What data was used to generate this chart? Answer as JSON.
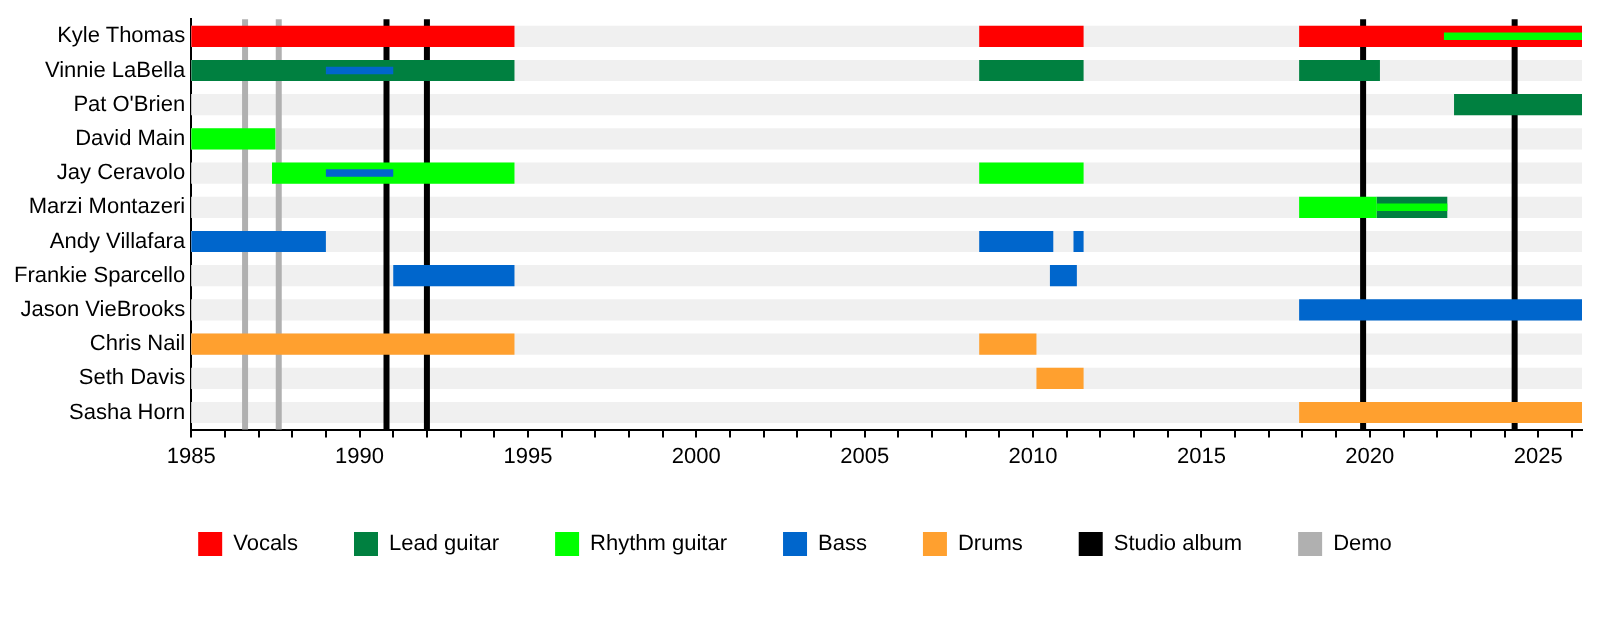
{
  "chart_data": {
    "type": "bar",
    "orientation": "horizontal",
    "categories": [
      "Kyle Thomas",
      "Vinnie LaBella",
      "Pat O'Brien",
      "David Main",
      "Jay Ceravolo",
      "Marzi Montazeri",
      "Andy Villafara",
      "Frankie Sparcello",
      "Jason VieBrooks",
      "Chris Nail",
      "Seth Davis",
      "Sasha Horn"
    ],
    "series": [
      {
        "name": "Vocals",
        "color": "#ff0000",
        "base": [
          1985,
          null,
          null,
          null,
          null,
          null,
          null,
          null,
          null,
          null,
          null,
          null
        ],
        "values": [
          9.6,
          null,
          null,
          null,
          null,
          null,
          null,
          null,
          null,
          null,
          null,
          null
        ]
      },
      {
        "color": "#ff0000",
        "base": [
          2008.4,
          null,
          null,
          null,
          null,
          null,
          null,
          null,
          null,
          null,
          null,
          null
        ],
        "values": [
          3.1,
          null,
          null,
          null,
          null,
          null,
          null,
          null,
          null,
          null,
          null,
          null
        ]
      },
      {
        "color": "#ff0000",
        "base": [
          2017.9,
          null,
          null,
          null,
          null,
          null,
          null,
          null,
          null,
          null,
          null,
          null
        ],
        "values": [
          8.4,
          null,
          null,
          null,
          null,
          null,
          null,
          null,
          null,
          null,
          null,
          null
        ]
      },
      {
        "name": "Lead guitar",
        "color": "#008040",
        "base": [
          null,
          1985,
          null,
          null,
          null,
          null,
          null,
          null,
          null,
          null,
          null,
          null
        ],
        "values": [
          null,
          9.6,
          null,
          null,
          null,
          null,
          null,
          null,
          null,
          null,
          null,
          null
        ]
      },
      {
        "color": "#008040",
        "base": [
          null,
          2008.4,
          null,
          null,
          null,
          null,
          null,
          null,
          null,
          null,
          null,
          null
        ],
        "values": [
          null,
          3.1,
          null,
          null,
          null,
          null,
          null,
          null,
          null,
          null,
          null,
          null
        ]
      },
      {
        "color": "#008040",
        "base": [
          null,
          2017.9,
          2022.5,
          null,
          null,
          2020.2,
          null,
          null,
          null,
          null,
          null,
          null
        ],
        "values": [
          null,
          2.4,
          3.8,
          null,
          null,
          2.1,
          null,
          null,
          null,
          null,
          null,
          null
        ]
      },
      {
        "name": "Rhythm guitar",
        "color": "#00ff00",
        "base": [
          null,
          null,
          null,
          1985,
          1987.4,
          2017.9,
          null,
          null,
          null,
          null,
          null,
          null
        ],
        "values": [
          null,
          null,
          null,
          2.5,
          7.2,
          2.3,
          null,
          null,
          null,
          null,
          null,
          null
        ]
      },
      {
        "color": "#00ff00",
        "base": [
          null,
          null,
          null,
          null,
          2008.4,
          null,
          null,
          null,
          null,
          null,
          null,
          null
        ],
        "values": [
          null,
          null,
          null,
          null,
          3.1,
          null,
          null,
          null,
          null,
          null,
          null,
          null
        ]
      },
      {
        "name": "Bass",
        "color": "#0066cc",
        "base": [
          null,
          null,
          null,
          null,
          null,
          null,
          1985,
          1991.0,
          2017.9,
          null,
          null,
          null
        ],
        "values": [
          null,
          null,
          null,
          null,
          null,
          null,
          4.0,
          3.6,
          8.4,
          null,
          null,
          null
        ]
      },
      {
        "color": "#0066cc",
        "base": [
          null,
          null,
          null,
          null,
          null,
          null,
          2008.4,
          2010.5,
          null,
          null,
          null,
          null
        ],
        "values": [
          null,
          null,
          null,
          null,
          null,
          null,
          2.2,
          0.8,
          null,
          null,
          null,
          null
        ]
      },
      {
        "color": "#0066cc",
        "base": [
          null,
          null,
          null,
          null,
          null,
          null,
          2011.2,
          null,
          null,
          null,
          null,
          null
        ],
        "values": [
          null,
          null,
          null,
          null,
          null,
          null,
          0.3,
          null,
          null,
          null,
          null,
          null
        ]
      },
      {
        "name": "Drums",
        "color": "#ffa02f",
        "base": [
          null,
          null,
          null,
          null,
          null,
          null,
          null,
          null,
          null,
          1985,
          2010.1,
          2017.9
        ],
        "values": [
          null,
          null,
          null,
          null,
          null,
          null,
          null,
          null,
          null,
          9.6,
          1.4,
          8.4
        ]
      },
      {
        "color": "#ffa02f",
        "base": [
          null,
          null,
          null,
          null,
          null,
          null,
          null,
          null,
          null,
          2008.4,
          null,
          null
        ],
        "values": [
          null,
          null,
          null,
          null,
          null,
          null,
          null,
          null,
          null,
          1.7,
          null,
          null
        ]
      },
      {
        "color": "#0066cc",
        "base": [
          null,
          1989.0,
          null,
          null,
          1989.0,
          null,
          null,
          null,
          null,
          null,
          null,
          null
        ],
        "values": [
          null,
          2.0,
          null,
          null,
          2.0,
          null,
          null,
          null,
          null,
          null,
          null,
          null
        ]
      },
      {
        "color": "#00ff00",
        "base": [
          2022.2,
          null,
          null,
          null,
          null,
          2020.2,
          null,
          null,
          null,
          null,
          null,
          null
        ],
        "values": [
          4.1,
          null,
          null,
          null,
          null,
          2.1,
          null,
          null,
          null,
          null,
          null,
          null
        ]
      }
    ],
    "ref_lines": [
      {
        "axis": "x",
        "value": 1990.8,
        "label": "Studio album",
        "color": "#000000"
      },
      {
        "axis": "x",
        "value": 1992.0,
        "color": "#000000"
      },
      {
        "axis": "x",
        "value": 2019.8,
        "color": "#000000"
      },
      {
        "axis": "x",
        "value": 2024.3,
        "color": "#000000"
      },
      {
        "axis": "x",
        "value": 1986.6,
        "label": "Demo",
        "color": "#b0b0b0"
      },
      {
        "axis": "x",
        "value": 1987.6,
        "color": "#b0b0b0"
      }
    ],
    "xlim": [
      1985,
      2026.3
    ],
    "xticks": [
      1985,
      {
        "value": 1986,
        "label": null
      },
      {
        "value": 1987,
        "label": null
      },
      {
        "value": 1988,
        "label": null
      },
      {
        "value": 1989,
        "label": null
      },
      1990,
      {
        "value": 1991,
        "label": null
      },
      {
        "value": 1992,
        "label": null
      },
      {
        "value": 1993,
        "label": null
      },
      {
        "value": 1994,
        "label": null
      },
      1995,
      {
        "value": 1996,
        "label": null
      },
      {
        "value": 1997,
        "label": null
      },
      {
        "value": 1998,
        "label": null
      },
      {
        "value": 1999,
        "label": null
      },
      2000,
      {
        "value": 2001,
        "label": null
      },
      {
        "value": 2002,
        "label": null
      },
      {
        "value": 2003,
        "label": null
      },
      {
        "value": 2004,
        "label": null
      },
      2005,
      {
        "value": 2006,
        "label": null
      },
      {
        "value": 2007,
        "label": null
      },
      {
        "value": 2008,
        "label": null
      },
      {
        "value": 2009,
        "label": null
      },
      2010,
      {
        "value": 2011,
        "label": null
      },
      {
        "value": 2012,
        "label": null
      },
      {
        "value": 2013,
        "label": null
      },
      {
        "value": 2014,
        "label": null
      },
      2015,
      {
        "value": 2016,
        "label": null
      },
      {
        "value": 2017,
        "label": null
      },
      {
        "value": 2018,
        "label": null
      },
      {
        "value": 2019,
        "label": null
      },
      2020,
      {
        "value": 2021,
        "label": null
      },
      {
        "value": 2022,
        "label": null
      },
      {
        "value": 2023,
        "label": null
      },
      {
        "value": 2024,
        "label": null
      },
      2025,
      {
        "value": 2026,
        "label": null
      }
    ],
    "grid": false,
    "legend": "bottom"
  }
}
